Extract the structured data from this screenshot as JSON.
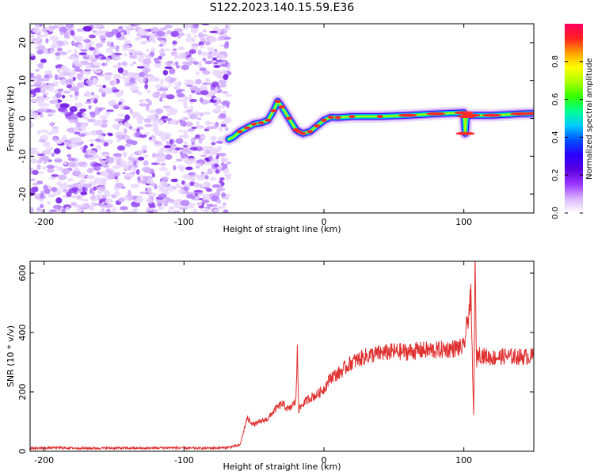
{
  "figure_title": "S122.2023.140.15.59.E36",
  "chart_data": [
    {
      "type": "heatmap",
      "xlabel": "Height of straight line (km)",
      "ylabel": "Frequency (Hz)",
      "xlim": [
        -210,
        150
      ],
      "ylim": [
        -25,
        25
      ],
      "xticks": [
        -200,
        -100,
        0,
        100
      ],
      "yticks": [
        -20,
        -10,
        0,
        10,
        20
      ],
      "colorbar": {
        "label": "Normalized spectral amplitude",
        "range": [
          0,
          1
        ],
        "ticks": [
          "0.0",
          "0.2",
          "0.4",
          "0.6",
          "0.8"
        ],
        "colors": [
          "#ffffff",
          "#d9b3ff",
          "#9a33ff",
          "#5a00e0",
          "#2a00ff",
          "#0050ff",
          "#00ccff",
          "#00ff90",
          "#33ff00",
          "#aaff00",
          "#ffff00",
          "#ffa000",
          "#ff2020",
          "#ff0060"
        ]
      },
      "noise_region_x": [
        -210,
        -68
      ],
      "ridge": {
        "x": [
          -68,
          -65,
          -60,
          -55,
          -50,
          -45,
          -40,
          -36,
          -33,
          -30,
          -25,
          -20,
          -18,
          -15,
          -10,
          -5,
          0,
          5,
          10,
          20,
          40,
          60,
          80,
          100,
          101,
          102,
          105,
          120,
          140,
          150
        ],
        "freq": [
          -5.5,
          -5,
          -3.5,
          -2.5,
          -1.5,
          -1.2,
          -0.5,
          2,
          4.5,
          3,
          0,
          -3,
          -3.5,
          -4,
          -3.5,
          -2,
          -0.5,
          0.3,
          0.2,
          0.5,
          0.5,
          0.8,
          1.2,
          1.5,
          -4,
          0.5,
          0.8,
          0.8,
          1.2,
          1.3
        ]
      }
    },
    {
      "type": "line",
      "xlabel": "Height of straight line (km)",
      "ylabel": "SNR (10 * v/v)",
      "xlim": [
        -210,
        150
      ],
      "ylim": [
        0,
        640
      ],
      "xticks": [
        -200,
        -100,
        0,
        100
      ],
      "yticks": [
        0,
        200,
        400,
        600
      ],
      "color": "#e03030",
      "x": [
        -210,
        -190,
        -170,
        -150,
        -130,
        -110,
        -90,
        -70,
        -60,
        -55,
        -50,
        -45,
        -40,
        -35,
        -30,
        -25,
        -20,
        -19,
        -18,
        -15,
        -10,
        -5,
        0,
        5,
        10,
        15,
        20,
        30,
        40,
        50,
        60,
        70,
        80,
        90,
        100,
        105,
        107,
        108,
        109,
        110,
        115,
        120,
        130,
        140,
        150
      ],
      "y": [
        10,
        12,
        10,
        11,
        10,
        12,
        10,
        12,
        20,
        110,
        90,
        100,
        110,
        140,
        160,
        140,
        170,
        360,
        140,
        160,
        180,
        190,
        210,
        250,
        260,
        280,
        300,
        320,
        330,
        335,
        335,
        340,
        340,
        345,
        350,
        520,
        115,
        640,
        300,
        330,
        320,
        315,
        320,
        318,
        320
      ]
    }
  ]
}
